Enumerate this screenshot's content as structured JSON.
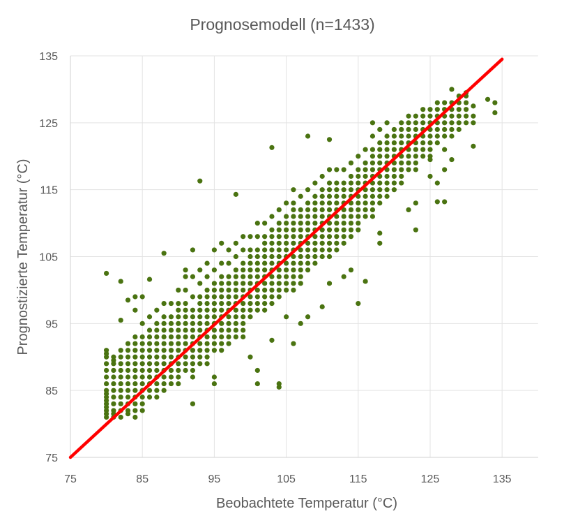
{
  "chart_data": {
    "type": "scatter",
    "title": "Prognosemodell (n=1433)",
    "xlabel": "Beobachtete Temperatur (°C)",
    "ylabel": "Prognostizierte Temperatur (°C)",
    "xlim": [
      75,
      140
    ],
    "ylim": [
      75,
      135
    ],
    "xticks": [
      "75",
      "85",
      "95",
      "105",
      "115",
      "125",
      "135"
    ],
    "yticks": [
      "75",
      "85",
      "95",
      "105",
      "115",
      "125",
      "135"
    ],
    "grid": true,
    "legend": "none",
    "point_color": "#4A7311",
    "line_color": "#FF0000",
    "reference_line": {
      "x": [
        75,
        135
      ],
      "y": [
        75,
        134.5
      ]
    },
    "columns": [
      {
        "x": 80,
        "y": [
          81,
          81.5,
          82,
          82.5,
          83,
          83.5,
          84,
          84.5,
          85,
          86,
          87,
          88,
          89,
          90,
          90.5,
          91,
          102.5
        ]
      },
      {
        "x": 81,
        "y": [
          81,
          81.5,
          82,
          83,
          84,
          85,
          86,
          87,
          88,
          89,
          89.5,
          90
        ]
      },
      {
        "x": 82,
        "y": [
          81,
          82,
          83,
          84,
          85,
          86,
          87,
          88,
          89,
          90,
          91,
          95.5,
          101.3
        ]
      },
      {
        "x": 83,
        "y": [
          81.5,
          82,
          83,
          84,
          85,
          86,
          87,
          88,
          89,
          90,
          91,
          92,
          98.5
        ]
      },
      {
        "x": 84,
        "y": [
          81,
          82,
          83,
          84,
          85,
          86,
          87,
          88,
          89,
          90,
          91,
          92,
          93,
          97,
          99
        ]
      },
      {
        "x": 85,
        "y": [
          82,
          83,
          84,
          85,
          86,
          87,
          88,
          89,
          90,
          91,
          92,
          93,
          95,
          99
        ]
      },
      {
        "x": 86,
        "y": [
          84,
          85,
          86,
          87,
          88,
          89,
          90,
          91,
          92,
          93,
          94,
          96,
          101.6
        ]
      },
      {
        "x": 87,
        "y": [
          84,
          85,
          86,
          87,
          88,
          89,
          90,
          91,
          92,
          93,
          94,
          95,
          97
        ]
      },
      {
        "x": 88,
        "y": [
          85,
          86,
          87,
          88,
          89,
          90,
          91,
          92,
          93,
          94,
          95,
          96,
          98,
          105.5
        ]
      },
      {
        "x": 89,
        "y": [
          86,
          87,
          88,
          89,
          90,
          91,
          92,
          93,
          94,
          95,
          96,
          98
        ]
      },
      {
        "x": 90,
        "y": [
          86,
          87,
          88,
          89,
          90,
          91,
          92,
          93,
          94,
          95,
          96,
          97,
          98,
          100
        ]
      },
      {
        "x": 91,
        "y": [
          88,
          89,
          90,
          91,
          92,
          93,
          94,
          95,
          96,
          97,
          98,
          100,
          102,
          103
        ]
      },
      {
        "x": 92,
        "y": [
          83,
          87,
          88,
          89,
          90,
          91,
          92,
          93,
          94,
          95,
          96,
          97,
          99,
          102,
          106
        ]
      },
      {
        "x": 93,
        "y": [
          89,
          90,
          91,
          92,
          93,
          94,
          95,
          96,
          97,
          98,
          99,
          101,
          103,
          116.3
        ]
      },
      {
        "x": 94,
        "y": [
          89,
          90,
          91,
          92,
          93,
          94,
          95,
          96,
          97,
          98,
          99,
          100,
          102,
          104
        ]
      },
      {
        "x": 95,
        "y": [
          86,
          87,
          91,
          92,
          93,
          94,
          95,
          96,
          97,
          98,
          99,
          100,
          101,
          103,
          106
        ]
      },
      {
        "x": 96,
        "y": [
          91,
          92,
          93,
          94,
          95,
          96,
          97,
          98,
          99,
          100,
          101,
          102,
          104,
          107
        ]
      },
      {
        "x": 97,
        "y": [
          92,
          93,
          94,
          95,
          96,
          97,
          98,
          99,
          100,
          101,
          102,
          104,
          106
        ]
      },
      {
        "x": 98,
        "y": [
          93,
          94,
          95,
          96,
          97,
          98,
          99,
          100,
          101,
          102,
          103,
          105,
          107,
          114.3
        ]
      },
      {
        "x": 99,
        "y": [
          93,
          94,
          95,
          96,
          97,
          98,
          99,
          100,
          101,
          102,
          103,
          104,
          106,
          108
        ]
      },
      {
        "x": 100,
        "y": [
          90,
          96,
          97,
          98,
          99,
          100,
          101,
          102,
          103,
          104,
          105,
          106,
          108
        ]
      },
      {
        "x": 101,
        "y": [
          86,
          88,
          97,
          98,
          99,
          100,
          101,
          102,
          103,
          104,
          105,
          106,
          108,
          110
        ]
      },
      {
        "x": 102,
        "y": [
          97,
          98,
          99,
          100,
          101,
          102,
          103,
          104,
          105,
          106,
          107,
          108,
          110
        ]
      },
      {
        "x": 103,
        "y": [
          92.5,
          98,
          99,
          100,
          101,
          102,
          103,
          104,
          105,
          106,
          107,
          108,
          109,
          111,
          121.3
        ]
      },
      {
        "x": 104,
        "y": [
          85.5,
          86,
          99,
          100,
          101,
          102,
          103,
          104,
          105,
          106,
          107,
          108,
          109,
          110,
          112
        ]
      },
      {
        "x": 105,
        "y": [
          96,
          100,
          101,
          102,
          103,
          104,
          105,
          106,
          107,
          108,
          109,
          110,
          111,
          113
        ]
      },
      {
        "x": 106,
        "y": [
          92,
          100,
          101,
          102,
          103,
          104,
          105,
          106,
          107,
          108,
          109,
          110,
          111,
          112,
          113,
          115
        ]
      },
      {
        "x": 107,
        "y": [
          95,
          101,
          102,
          103,
          104,
          105,
          106,
          107,
          108,
          109,
          110,
          111,
          112,
          114
        ]
      },
      {
        "x": 108,
        "y": [
          96,
          103,
          104,
          105,
          106,
          107,
          108,
          109,
          110,
          111,
          112,
          113,
          115,
          123
        ]
      },
      {
        "x": 109,
        "y": [
          104,
          105,
          106,
          107,
          108,
          109,
          110,
          111,
          112,
          113,
          114,
          116
        ]
      },
      {
        "x": 110,
        "y": [
          97.5,
          105,
          106,
          107,
          108,
          109,
          110,
          111,
          112,
          113,
          114,
          115,
          117
        ]
      },
      {
        "x": 111,
        "y": [
          101,
          105,
          106,
          107,
          108,
          109,
          110,
          111,
          112,
          113,
          114,
          115,
          116,
          118,
          122.5
        ]
      },
      {
        "x": 112,
        "y": [
          106,
          107,
          108,
          109,
          110,
          111,
          112,
          113,
          114,
          115,
          116,
          118
        ]
      },
      {
        "x": 113,
        "y": [
          102,
          107,
          108,
          109,
          110,
          111,
          112,
          113,
          114,
          115,
          116,
          118
        ]
      },
      {
        "x": 114,
        "y": [
          103,
          108,
          109,
          110,
          111,
          112,
          113,
          114,
          115,
          116,
          117,
          119
        ]
      },
      {
        "x": 115,
        "y": [
          98,
          109,
          110,
          111,
          112,
          113,
          114,
          115,
          116,
          117,
          118,
          120
        ]
      },
      {
        "x": 116,
        "y": [
          101.3,
          111,
          112,
          113,
          114,
          115,
          116,
          117,
          118,
          119,
          121
        ]
      },
      {
        "x": 117,
        "y": [
          111,
          112,
          113,
          114,
          115,
          116,
          117,
          118,
          119,
          120,
          121,
          123,
          125
        ]
      },
      {
        "x": 118,
        "y": [
          107,
          108.5,
          113,
          114,
          115,
          116,
          117,
          118,
          119,
          120,
          121,
          122,
          124
        ]
      },
      {
        "x": 119,
        "y": [
          114,
          115,
          116,
          117,
          118,
          119,
          120,
          121,
          122,
          123,
          125
        ]
      },
      {
        "x": 120,
        "y": [
          115,
          116,
          117,
          118,
          119,
          120,
          121,
          122,
          123,
          124
        ]
      },
      {
        "x": 121,
        "y": [
          116,
          117,
          118,
          119,
          120,
          121,
          122,
          123,
          124,
          125
        ]
      },
      {
        "x": 122,
        "y": [
          112,
          118,
          119,
          120,
          121,
          122,
          123,
          124,
          125,
          126
        ]
      },
      {
        "x": 123,
        "y": [
          109,
          113,
          118,
          119,
          120,
          121,
          122,
          123,
          124,
          125,
          126
        ]
      },
      {
        "x": 124,
        "y": [
          120,
          121,
          122,
          123,
          124,
          125,
          126,
          127
        ]
      },
      {
        "x": 125,
        "y": [
          117,
          119.5,
          120,
          121,
          122,
          123,
          124,
          125,
          126,
          127
        ]
      },
      {
        "x": 126,
        "y": [
          113.2,
          116,
          122,
          123,
          124,
          125,
          126,
          127,
          128
        ]
      },
      {
        "x": 127,
        "y": [
          113.2,
          118,
          121,
          123,
          124,
          125,
          126,
          127,
          128
        ]
      },
      {
        "x": 128,
        "y": [
          119.5,
          123,
          124,
          125,
          126,
          127,
          128,
          130
        ]
      },
      {
        "x": 129,
        "y": [
          124,
          125,
          126,
          127,
          128,
          129
        ]
      },
      {
        "x": 130,
        "y": [
          125,
          126,
          127,
          128,
          129,
          129.5
        ]
      },
      {
        "x": 131,
        "y": [
          121.5,
          125,
          126,
          127.5
        ]
      },
      {
        "x": 133,
        "y": [
          128.5
        ]
      },
      {
        "x": 134,
        "y": [
          126.5,
          128
        ]
      }
    ]
  }
}
